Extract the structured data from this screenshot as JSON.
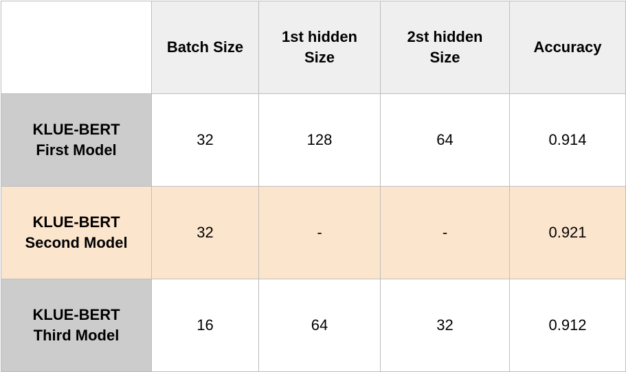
{
  "table": {
    "headers": [
      "",
      "Batch Size",
      "1st hidden\nSize",
      "2st hidden\nSize",
      "Accuracy"
    ],
    "header_lines": {
      "batch_size": [
        "Batch Size"
      ],
      "first_hidden": [
        "1st hidden",
        "Size"
      ],
      "second_hidden": [
        "2st hidden",
        "Size"
      ],
      "accuracy": [
        "Accuracy"
      ]
    },
    "rows": [
      {
        "model_lines": [
          "KLUE-BERT",
          "First Model"
        ],
        "batch_size": "32",
        "first_hidden": "128",
        "second_hidden": "64",
        "accuracy": "0.914"
      },
      {
        "model_lines": [
          "KLUE-BERT",
          "Second Model"
        ],
        "batch_size": "32",
        "first_hidden": "-",
        "second_hidden": "-",
        "accuracy": "0.921"
      },
      {
        "model_lines": [
          "KLUE-BERT",
          "Third Model"
        ],
        "batch_size": "16",
        "first_hidden": "64",
        "second_hidden": "32",
        "accuracy": "0.912"
      }
    ]
  },
  "colors": {
    "header_bg": "#efefef",
    "row_label_gray": "#cccccc",
    "highlight_row": "#fce5cd",
    "border": "#bdbdbd"
  }
}
